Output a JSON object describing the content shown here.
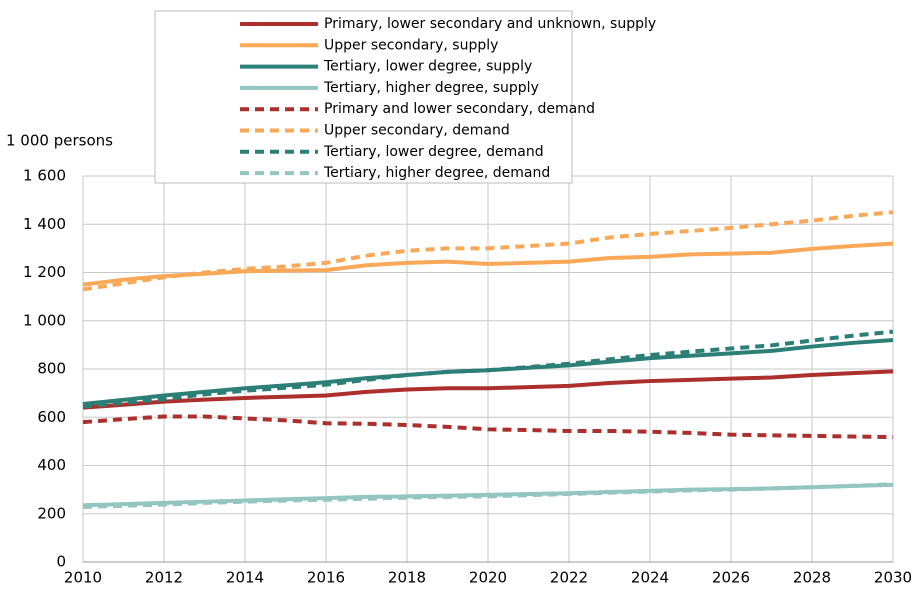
{
  "chart_data": {
    "type": "line",
    "y_label": "1 000 persons",
    "x": [
      2010,
      2011,
      2012,
      2013,
      2014,
      2015,
      2016,
      2017,
      2018,
      2019,
      2020,
      2021,
      2022,
      2023,
      2024,
      2025,
      2026,
      2027,
      2028,
      2029,
      2030
    ],
    "xlim": [
      2010,
      2030
    ],
    "xticks": [
      2010,
      2012,
      2014,
      2016,
      2018,
      2020,
      2022,
      2024,
      2026,
      2028,
      2030
    ],
    "ylim": [
      0,
      1600
    ],
    "yticks": [
      0,
      200,
      400,
      600,
      800,
      {
        "value": 1000,
        "label": "1 000"
      },
      {
        "value": 1200,
        "label": "1 200"
      },
      {
        "value": 1400,
        "label": "1 400"
      },
      {
        "value": 1600,
        "label": "1 600"
      }
    ],
    "grid": true,
    "series": [
      {
        "name": "Primary, lower secondary and unknown, supply",
        "color": "#ab2f2c",
        "line_style": "solid",
        "values": [
          640,
          652,
          665,
          673,
          680,
          685,
          690,
          705,
          715,
          720,
          720,
          725,
          730,
          742,
          750,
          755,
          760,
          765,
          775,
          783,
          790
        ]
      },
      {
        "name": "Upper secondary, supply",
        "color": "#f9a857",
        "line_style": "solid",
        "values": [
          1150,
          1170,
          1185,
          1195,
          1205,
          1208,
          1210,
          1230,
          1240,
          1245,
          1235,
          1240,
          1245,
          1260,
          1265,
          1275,
          1278,
          1282,
          1298,
          1310,
          1320
        ]
      },
      {
        "name": "Tertiary, lower degree, supply",
        "color": "#2c7f77",
        "line_style": "solid",
        "values": [
          655,
          672,
          690,
          705,
          720,
          732,
          745,
          762,
          775,
          788,
          795,
          805,
          815,
          830,
          845,
          855,
          865,
          875,
          893,
          908,
          920
        ]
      },
      {
        "name": "Tertiary, higher degree, supply",
        "color": "#93c5c1",
        "line_style": "solid",
        "values": [
          235,
          240,
          245,
          250,
          255,
          260,
          265,
          270,
          272,
          275,
          278,
          282,
          285,
          290,
          295,
          300,
          302,
          305,
          310,
          315,
          320
        ]
      },
      {
        "name": "Primary and  lower secondary, demand",
        "color": "#ab2f2c",
        "line_style": "dashed",
        "values": [
          580,
          592,
          603,
          603,
          595,
          587,
          575,
          573,
          568,
          560,
          550,
          547,
          543,
          543,
          540,
          535,
          528,
          525,
          523,
          520,
          518
        ]
      },
      {
        "name": "Upper secondary, demand",
        "color": "#f9a857",
        "line_style": "dashed",
        "values": [
          1130,
          1155,
          1180,
          1200,
          1215,
          1225,
          1240,
          1270,
          1290,
          1300,
          1300,
          1310,
          1320,
          1345,
          1360,
          1372,
          1385,
          1400,
          1415,
          1435,
          1450
        ]
      },
      {
        "name": "Tertiary, lower degree, demand",
        "color": "#2c7f77",
        "line_style": "dashed",
        "values": [
          645,
          660,
          675,
          695,
          710,
          722,
          735,
          755,
          775,
          788,
          795,
          808,
          822,
          840,
          858,
          872,
          885,
          898,
          918,
          938,
          955
        ]
      },
      {
        "name": "Tertiary, higher degree, demand",
        "color": "#93c5c1",
        "line_style": "dashed",
        "values": [
          228,
          233,
          238,
          245,
          250,
          255,
          258,
          262,
          267,
          270,
          272,
          277,
          282,
          287,
          292,
          297,
          300,
          305,
          310,
          316,
          322
        ]
      }
    ]
  }
}
